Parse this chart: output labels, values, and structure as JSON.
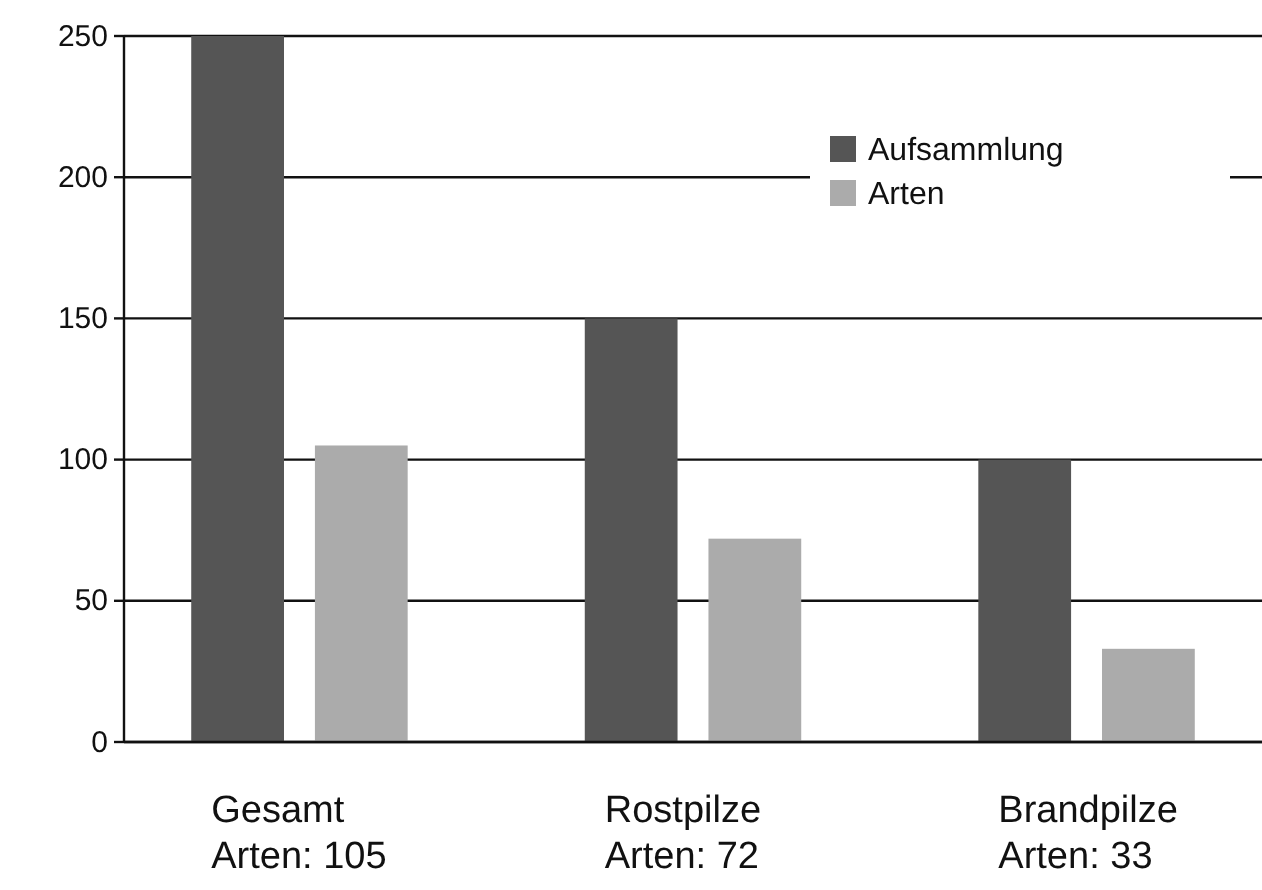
{
  "chart_data": {
    "type": "bar",
    "categories": [
      "Gesamt\nArten: 105",
      "Rostpilze\nArten: 72",
      "Brandpilze\nArten: 33"
    ],
    "series": [
      {
        "name": "Aufsammlung",
        "color": "#555555",
        "values": [
          250,
          150,
          100
        ]
      },
      {
        "name": "Arten",
        "color": "#ababab",
        "values": [
          105,
          72,
          33
        ]
      }
    ],
    "ylim": [
      0,
      250
    ],
    "yticks": [
      0,
      50,
      100,
      150,
      200,
      250
    ],
    "grid": "y",
    "legend": "top right"
  }
}
